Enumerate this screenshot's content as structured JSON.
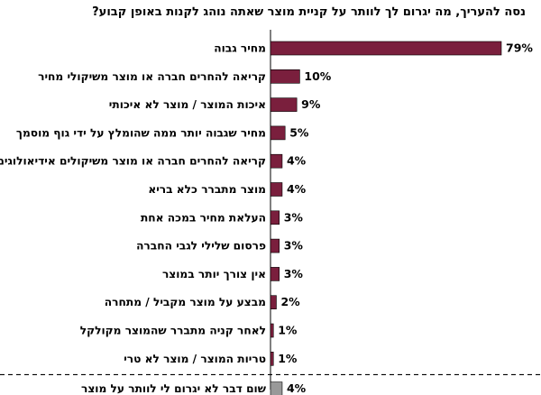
{
  "chart_data": {
    "type": "bar",
    "orientation": "horizontal",
    "title": "נסה להעריך, מה יגרום לך לוותר על קניית מוצר שאתה נוהג לקנות באופן קבוע?",
    "value_suffix": "%",
    "colors": {
      "main": "#7a1f3d",
      "other": "#999999"
    },
    "categories": [
      "מחיר גבוה",
      "קריאה להחרים חברה או מוצר משיקולי מחיר",
      "איכות המוצר / מוצר לא איכותי",
      "מחיר שגבוה יותר ממה שהומלץ על ידי גוף מוסמך",
      "קריאה להחרים חברה או מוצר משיקולים אידיאולוגים",
      "מוצר מתברר כלא בריא",
      "העלאת מחיר במכה אחת",
      "פרסום שלילי לגבי החברה",
      "אין צורך יותר במוצר",
      "מבצע על מוצר מקביל / מתחרה",
      "לאחר קניה מתברר שהמוצר מקולקל",
      "טריות המוצר / מוצר לא טרי",
      "שום דבר לא יגרום לי לוותר על מוצר"
    ],
    "values": [
      79,
      10,
      9,
      5,
      4,
      4,
      3,
      3,
      3,
      2,
      1,
      1,
      4
    ],
    "separator_before_last": true
  }
}
